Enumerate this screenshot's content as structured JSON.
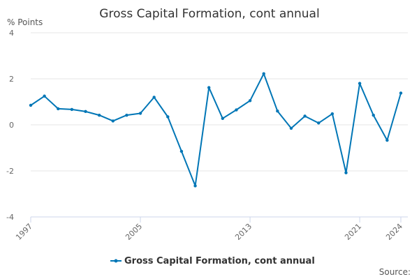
{
  "chart_data": {
    "type": "line",
    "title": "Gross Capital Formation, cont annual",
    "ylabel": "% Points",
    "xlabel": "",
    "ylim": [
      -4,
      4
    ],
    "yticks": [
      4,
      2,
      0,
      -2,
      -4
    ],
    "ytick_labels": [
      "4",
      "2",
      "0",
      "-2",
      "-4"
    ],
    "xlim": [
      1997,
      2024
    ],
    "xticks": [
      1997,
      2005,
      2013,
      2021,
      2024
    ],
    "xtick_labels": [
      "1997",
      "2005",
      "2013",
      "2021",
      "2024"
    ],
    "grid": "horizontal",
    "legend_position": "bottom",
    "source_label": "Source:",
    "series": [
      {
        "name": "Gross Capital Formation, cont annual",
        "color": "#0076b6",
        "x": [
          1997,
          1998,
          1999,
          2000,
          2001,
          2002,
          2003,
          2004,
          2005,
          2006,
          2007,
          2008,
          2009,
          2010,
          2011,
          2012,
          2013,
          2014,
          2015,
          2016,
          2017,
          2018,
          2019,
          2020,
          2021,
          2022,
          2023,
          2024
        ],
        "values": [
          0.85,
          1.25,
          0.7,
          0.67,
          0.58,
          0.42,
          0.17,
          0.42,
          0.5,
          1.2,
          0.35,
          -1.15,
          -2.65,
          1.62,
          0.28,
          0.65,
          1.05,
          2.22,
          0.6,
          -0.15,
          0.38,
          0.08,
          0.48,
          -2.08,
          1.8,
          0.42,
          -0.67,
          1.38
        ]
      }
    ]
  }
}
